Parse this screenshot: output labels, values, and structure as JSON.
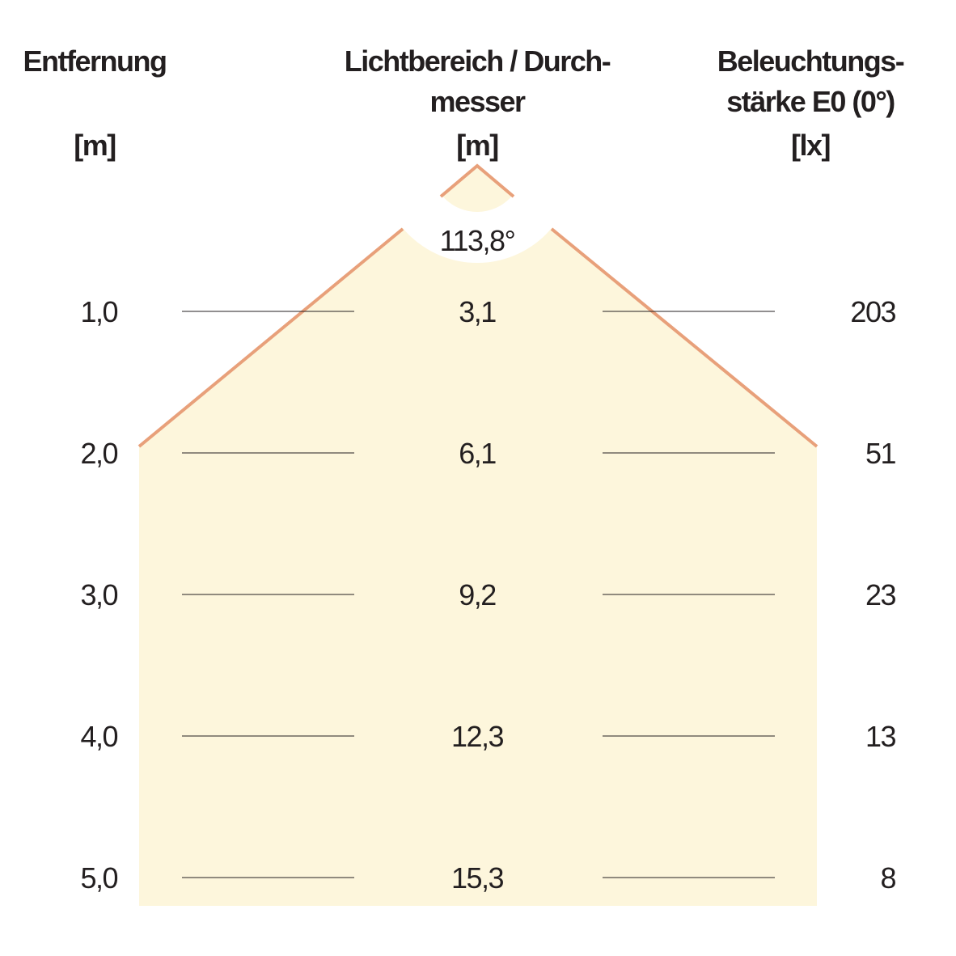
{
  "headers": {
    "distance": {
      "line1": "Entfernung",
      "unit": "[m]"
    },
    "diameter": {
      "line1": "Lichtbereich / Durch-",
      "line2": "messer",
      "unit": "[m]"
    },
    "illuminance": {
      "line1": "Beleuchtungs-",
      "line2": "stärke E0 (0°)",
      "unit": "[lx]"
    }
  },
  "beam_angle": "113,8°",
  "rows": [
    {
      "distance": "1,0",
      "diameter": "3,1",
      "lux": "203"
    },
    {
      "distance": "2,0",
      "diameter": "6,1",
      "lux": "51"
    },
    {
      "distance": "3,0",
      "diameter": "9,2",
      "lux": "23"
    },
    {
      "distance": "4,0",
      "diameter": "12,3",
      "lux": "13"
    },
    {
      "distance": "5,0",
      "diameter": "15,3",
      "lux": "8"
    }
  ],
  "colors": {
    "beam_fill": "#fdf6dc",
    "beam_edge": "#e8a07a",
    "text": "#231f20"
  }
}
